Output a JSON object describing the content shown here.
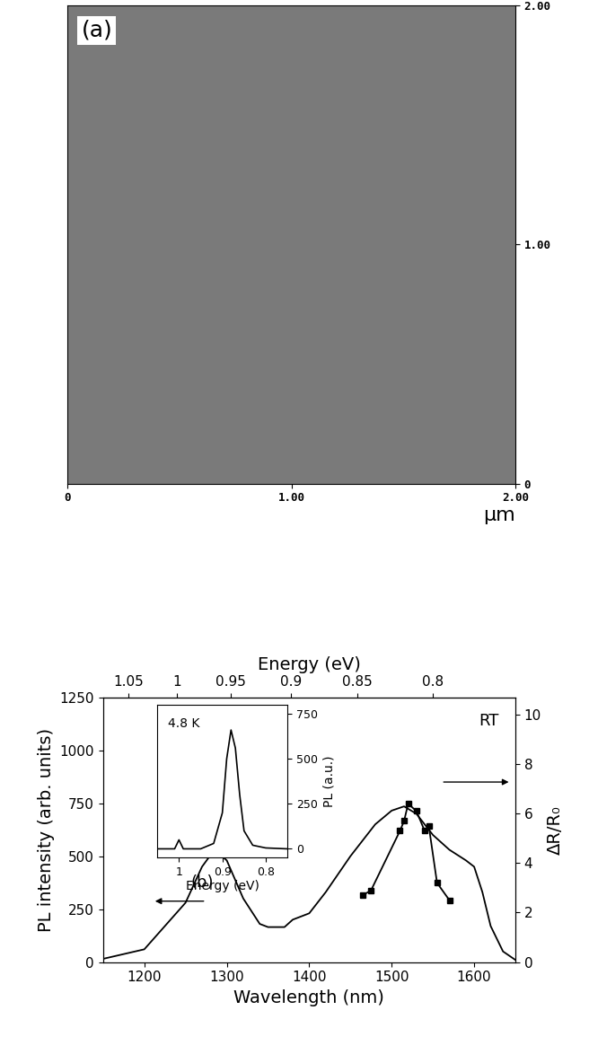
{
  "chart_data": [
    {
      "type": "image",
      "annotations": [
        "(a)"
      ],
      "color": "#7a7a7a",
      "xlabel": "µm",
      "xlim": [
        0,
        2
      ],
      "xticks": [
        {
          "value": 0,
          "label": "0"
        },
        {
          "value": 1,
          "label": "1.00"
        },
        {
          "value": 2,
          "label": "2.00"
        }
      ],
      "ylim": [
        0,
        2
      ],
      "yticks": [
        {
          "value": 0,
          "label": "0"
        },
        {
          "value": 1,
          "label": "1.00"
        },
        {
          "value": 2,
          "label": "2.00"
        }
      ]
    },
    {
      "type": "line",
      "annotations": [
        "RT",
        "(b)"
      ],
      "xlabel": "Wavelength (nm)",
      "ylabel": "PL intensity (arb. units)",
      "y2label": "ΔR/R₀",
      "x2label": "Energy (eV)",
      "x2ticks": [
        1.05,
        1,
        0.95,
        0.9,
        0.85,
        0.8
      ],
      "xlim": [
        1150,
        1650
      ],
      "xticks": [
        1200,
        1300,
        1400,
        1500,
        1600
      ],
      "ylim": [
        0,
        1250
      ],
      "yticks": [
        0,
        250,
        500,
        750,
        1000,
        1250
      ],
      "y2lim": [
        0,
        10.7
      ],
      "y2ticks": [
        0,
        2,
        4,
        6,
        8,
        10
      ],
      "series": [
        {
          "color": "#000000",
          "line_style": "solid",
          "x": [
            1150,
            1200,
            1250,
            1270,
            1285,
            1300,
            1320,
            1340,
            1350,
            1370,
            1380,
            1400,
            1420,
            1450,
            1480,
            1500,
            1515,
            1530,
            1550,
            1570,
            1590,
            1600,
            1610,
            1620,
            1635,
            1650
          ],
          "values": [
            15,
            60,
            280,
            450,
            530,
            480,
            300,
            180,
            165,
            165,
            200,
            230,
            330,
            500,
            650,
            715,
            735,
            700,
            600,
            530,
            480,
            450,
            330,
            170,
            50,
            10
          ]
        },
        {
          "color": "#000000",
          "line_style": "solid",
          "marker": "s",
          "axis": "y2",
          "x": [
            1465,
            1475,
            1510,
            1515,
            1520,
            1530,
            1540,
            1545,
            1555,
            1570
          ],
          "values": [
            2.7,
            2.9,
            5.3,
            5.7,
            6.4,
            6.1,
            5.3,
            5.5,
            3.2,
            2.5
          ]
        }
      ]
    },
    {
      "type": "line",
      "annotations": [
        "4.8 K"
      ],
      "xlabel": "Energy (eV)",
      "ylabel": "PL (a.u.)",
      "xlim": [
        1.05,
        0.75
      ],
      "xticks": [
        1,
        0.9,
        0.8
      ],
      "ylim": [
        -50,
        800
      ],
      "yticks": [
        0,
        250,
        500,
        750
      ],
      "series": [
        {
          "color": "#000000",
          "line_style": "solid",
          "x": [
            1.05,
            1.01,
            1.0,
            0.99,
            0.95,
            0.92,
            0.9,
            0.89,
            0.88,
            0.87,
            0.86,
            0.85,
            0.83,
            0.8,
            0.75
          ],
          "values": [
            0,
            0,
            50,
            0,
            0,
            30,
            200,
            500,
            660,
            560,
            300,
            100,
            20,
            5,
            0
          ]
        }
      ]
    }
  ]
}
